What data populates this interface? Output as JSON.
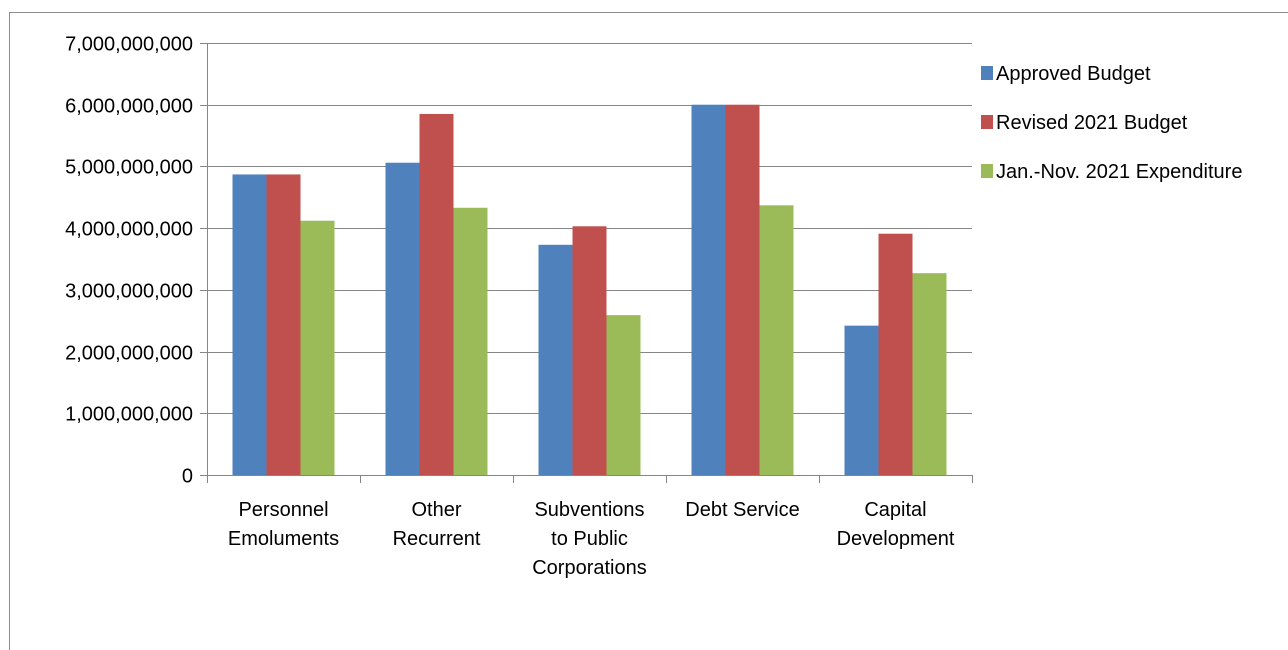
{
  "chart_data": {
    "type": "bar",
    "title": "",
    "xlabel": "",
    "ylabel": "",
    "ylim": [
      0,
      7000000000
    ],
    "yticks": [
      0,
      1000000000,
      2000000000,
      3000000000,
      4000000000,
      5000000000,
      6000000000,
      7000000000
    ],
    "ytick_labels": [
      "0",
      "1,000,000,000",
      "2,000,000,000",
      "3,000,000,000",
      "4,000,000,000",
      "5,000,000,000",
      "6,000,000,000",
      "7,000,000,000"
    ],
    "grid": true,
    "legend_position": "right",
    "categories": [
      [
        "Personnel",
        "Emoluments"
      ],
      [
        "Other",
        "Recurrent"
      ],
      [
        "Subventions",
        "to Public",
        "Corporations"
      ],
      [
        "Debt Service"
      ],
      [
        "Capital",
        "Development"
      ]
    ],
    "series": [
      {
        "name": "Approved Budget",
        "color": "#4f81bd",
        "values": [
          4870000000,
          5060000000,
          3730000000,
          6000000000,
          2420000000
        ]
      },
      {
        "name": "Revised 2021 Budget",
        "color": "#c0504d",
        "values": [
          4870000000,
          5850000000,
          4030000000,
          6000000000,
          3910000000
        ]
      },
      {
        "name": "Jan.-Nov. 2021 Expenditure",
        "color": "#9bbb59",
        "values": [
          4120000000,
          4330000000,
          2590000000,
          4370000000,
          3270000000
        ]
      }
    ]
  }
}
